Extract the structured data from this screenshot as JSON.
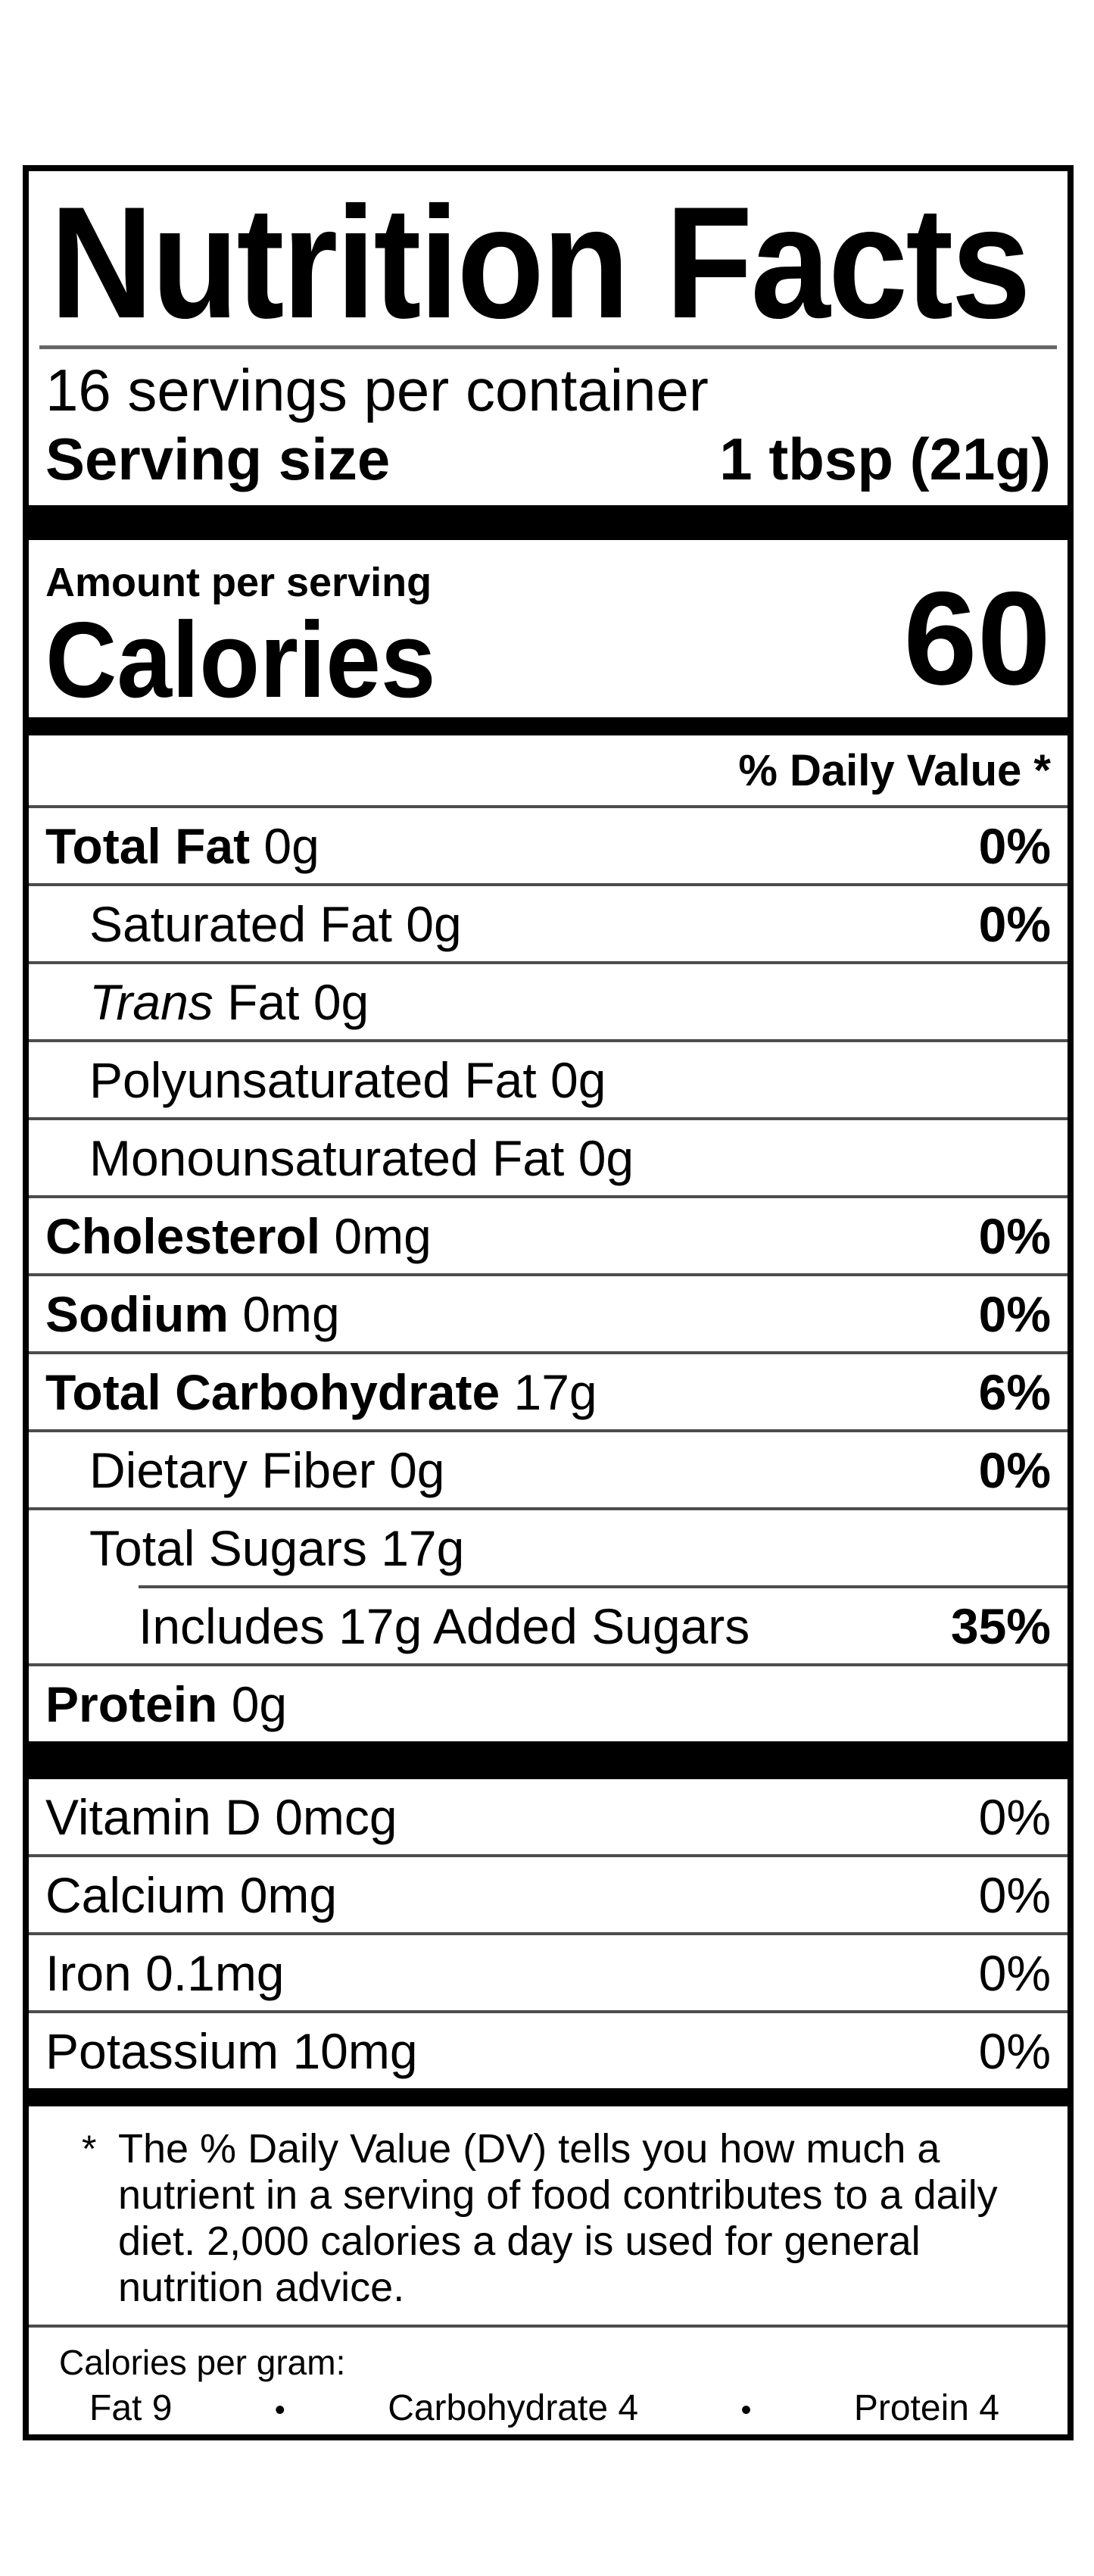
{
  "label": {
    "title": "Nutrition Facts",
    "servings_per_container": "16 servings per container",
    "serving_size": {
      "label": "Serving size",
      "value": "1 tbsp (21g)"
    },
    "amount_per_serving": "Amount per serving",
    "calories": {
      "label": "Calories",
      "value": "60"
    },
    "daily_value_header": "% Daily Value *",
    "nutrient_rows": [
      {
        "name": "Total Fat",
        "amount": " 0g",
        "dv": "0%"
      },
      {
        "name": "Saturated Fat",
        "amount": " 0g",
        "dv": "0%"
      },
      {
        "name_italic": "Trans",
        "name": " Fat",
        "amount": " 0g",
        "dv": ""
      },
      {
        "name": "Polyunsaturated Fat",
        "amount": " 0g",
        "dv": ""
      },
      {
        "name": "Monounsaturated Fat",
        "amount": " 0g",
        "dv": ""
      },
      {
        "name": "Cholesterol",
        "amount": " 0mg",
        "dv": "0%"
      },
      {
        "name": "Sodium",
        "amount": " 0mg",
        "dv": "0%"
      },
      {
        "name": "Total Carbohydrate",
        "amount": " 17g",
        "dv": "6%"
      },
      {
        "name": "Dietary Fiber",
        "amount": " 0g",
        "dv": "0%"
      },
      {
        "name": "Total Sugars",
        "amount": " 17g",
        "dv": ""
      },
      {
        "name": "Includes 17g Added Sugars",
        "amount": "",
        "dv": "35%"
      },
      {
        "name": "Protein",
        "amount": " 0g",
        "dv": ""
      }
    ],
    "vitamin_rows": [
      {
        "name": "Vitamin D",
        "amount": " 0mcg",
        "dv": "0%"
      },
      {
        "name": "Calcium",
        "amount": " 0mg",
        "dv": "0%"
      },
      {
        "name": "Iron",
        "amount": " 0.1mg",
        "dv": "0%"
      },
      {
        "name": "Potassium",
        "amount": " 10mg",
        "dv": "0%"
      }
    ],
    "footnote": {
      "marker": "*",
      "lines": [
        "The % Daily Value (DV) tells you how much a",
        "nutrient in a serving of food contributes to a daily",
        "diet. 2,000 calories a day is used for general",
        "nutrition advice."
      ]
    },
    "calories_per_gram": {
      "heading": "Calories per gram:",
      "separator": "•",
      "items": [
        "Fat 9",
        "Carbohydrate 4",
        "Protein 4"
      ]
    },
    "colors": {
      "text": "#000000",
      "background": "#ffffff",
      "divider": "#4d4d4d",
      "title_rule": "#666666"
    }
  }
}
